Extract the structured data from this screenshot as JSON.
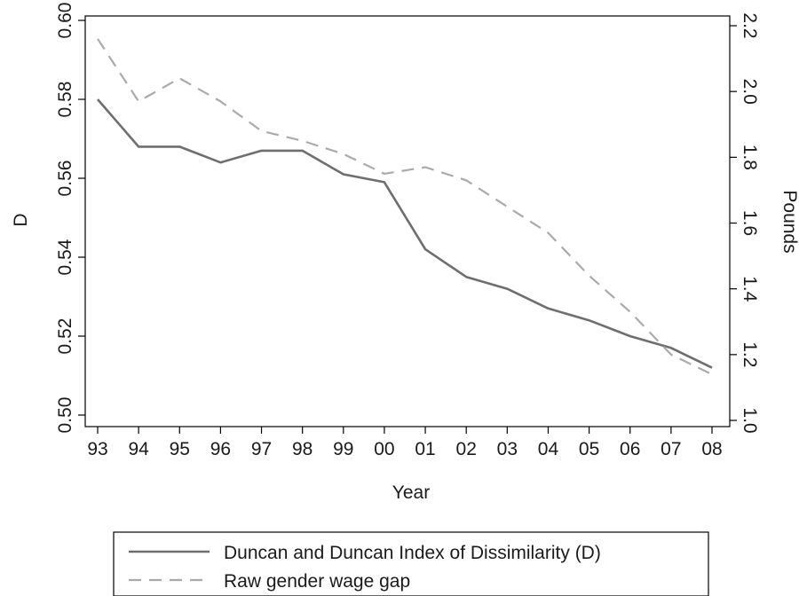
{
  "chart_data": {
    "type": "line",
    "categories": [
      "93",
      "94",
      "95",
      "96",
      "97",
      "98",
      "99",
      "00",
      "01",
      "02",
      "03",
      "04",
      "05",
      "06",
      "07",
      "08"
    ],
    "xlabel": "Year",
    "ylabel_left": "D",
    "ylabel_right": "Pounds",
    "ylim_left": [
      0.5,
      0.6
    ],
    "yticks_left": [
      "0.50",
      "0.52",
      "0.54",
      "0.56",
      "0.58",
      "0.60"
    ],
    "ylim_right": [
      1.0,
      2.2
    ],
    "yticks_right": [
      "1.0",
      "1.2",
      "1.4",
      "1.6",
      "1.8",
      "2.0",
      "2.2"
    ],
    "grid": false,
    "legend_position": "bottom",
    "series": [
      {
        "name": "Duncan and Duncan Index of Dissimilarity (D)",
        "axis": "left",
        "style": "solid",
        "color": "#6e6e6e",
        "values": [
          0.58,
          0.568,
          0.568,
          0.564,
          0.567,
          0.567,
          0.561,
          0.559,
          0.542,
          0.535,
          0.532,
          0.527,
          0.524,
          0.52,
          0.517,
          0.512
        ]
      },
      {
        "name": "Raw gender wage gap",
        "axis": "right",
        "style": "dashed",
        "color": "#aaaaaa",
        "values": [
          2.16,
          1.97,
          2.04,
          1.97,
          1.88,
          1.85,
          1.81,
          1.75,
          1.77,
          1.73,
          1.65,
          1.57,
          1.44,
          1.33,
          1.2,
          1.14
        ]
      }
    ]
  }
}
